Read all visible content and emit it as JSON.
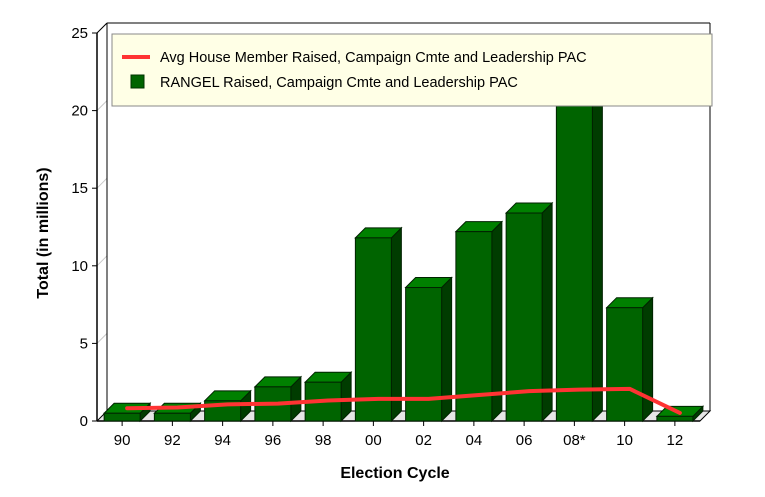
{
  "chart_data": {
    "type": "bar",
    "xlabel": "Election Cycle",
    "ylabel": "Total (in millions)",
    "ylim": [
      0,
      25
    ],
    "yticks": [
      0,
      5,
      10,
      15,
      20,
      25
    ],
    "grid": true,
    "legend_position": "top",
    "categories": [
      "90",
      "92",
      "94",
      "96",
      "98",
      "00",
      "02",
      "04",
      "06",
      "08*",
      "10",
      "12"
    ],
    "series": [
      {
        "name": "RANGEL Raised, Campaign Cmte and Leadership PAC",
        "type": "bar",
        "color": "#006400",
        "values": [
          0.5,
          0.5,
          1.3,
          2.2,
          2.5,
          11.8,
          8.6,
          12.2,
          13.4,
          20.5,
          7.3,
          0.3
        ]
      },
      {
        "name": "Avg House Member Raised, Campaign Cmte and Leadership PAC",
        "type": "line",
        "color": "#ff3333",
        "values": [
          0.5,
          0.55,
          0.75,
          0.8,
          1.0,
          1.1,
          1.1,
          1.35,
          1.6,
          1.7,
          1.75,
          0.2
        ]
      }
    ]
  }
}
